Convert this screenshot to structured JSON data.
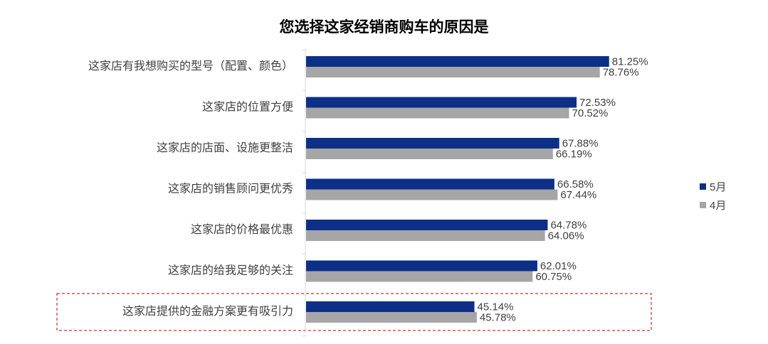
{
  "chart_data": {
    "type": "bar",
    "orientation": "horizontal",
    "title": "您选择这家经销商购车的原因是",
    "categories": [
      "这家店有我想购买的型号（配置、颜色）",
      "这家店的位置方便",
      "这家店的店面、设施更整洁",
      "这家店的销售顾问更优秀",
      "这家店的价格最优惠",
      "这家店的给我足够的关注",
      "这家店提供的金融方案更有吸引力"
    ],
    "series": [
      {
        "name": "5月",
        "color": "#0d2f87",
        "values": [
          81.25,
          72.53,
          67.88,
          66.58,
          64.78,
          62.01,
          45.14
        ],
        "labels": [
          "81.25%",
          "72.53%",
          "67.88%",
          "66.58%",
          "64.78%",
          "62.01%",
          "45.14%"
        ]
      },
      {
        "name": "4月",
        "color": "#a6a6a6",
        "values": [
          78.76,
          70.52,
          66.19,
          67.44,
          64.06,
          60.75,
          45.78
        ],
        "labels": [
          "78.76%",
          "70.52%",
          "66.19%",
          "67.44%",
          "64.06%",
          "60.75%",
          "45.78%"
        ]
      }
    ],
    "xlim": [
      0,
      100
    ],
    "value_unit": "%",
    "legend_position": "right",
    "grid": false,
    "highlighted_category": "这家店提供的金融方案更有吸引力",
    "highlight_color": "#c00000"
  }
}
